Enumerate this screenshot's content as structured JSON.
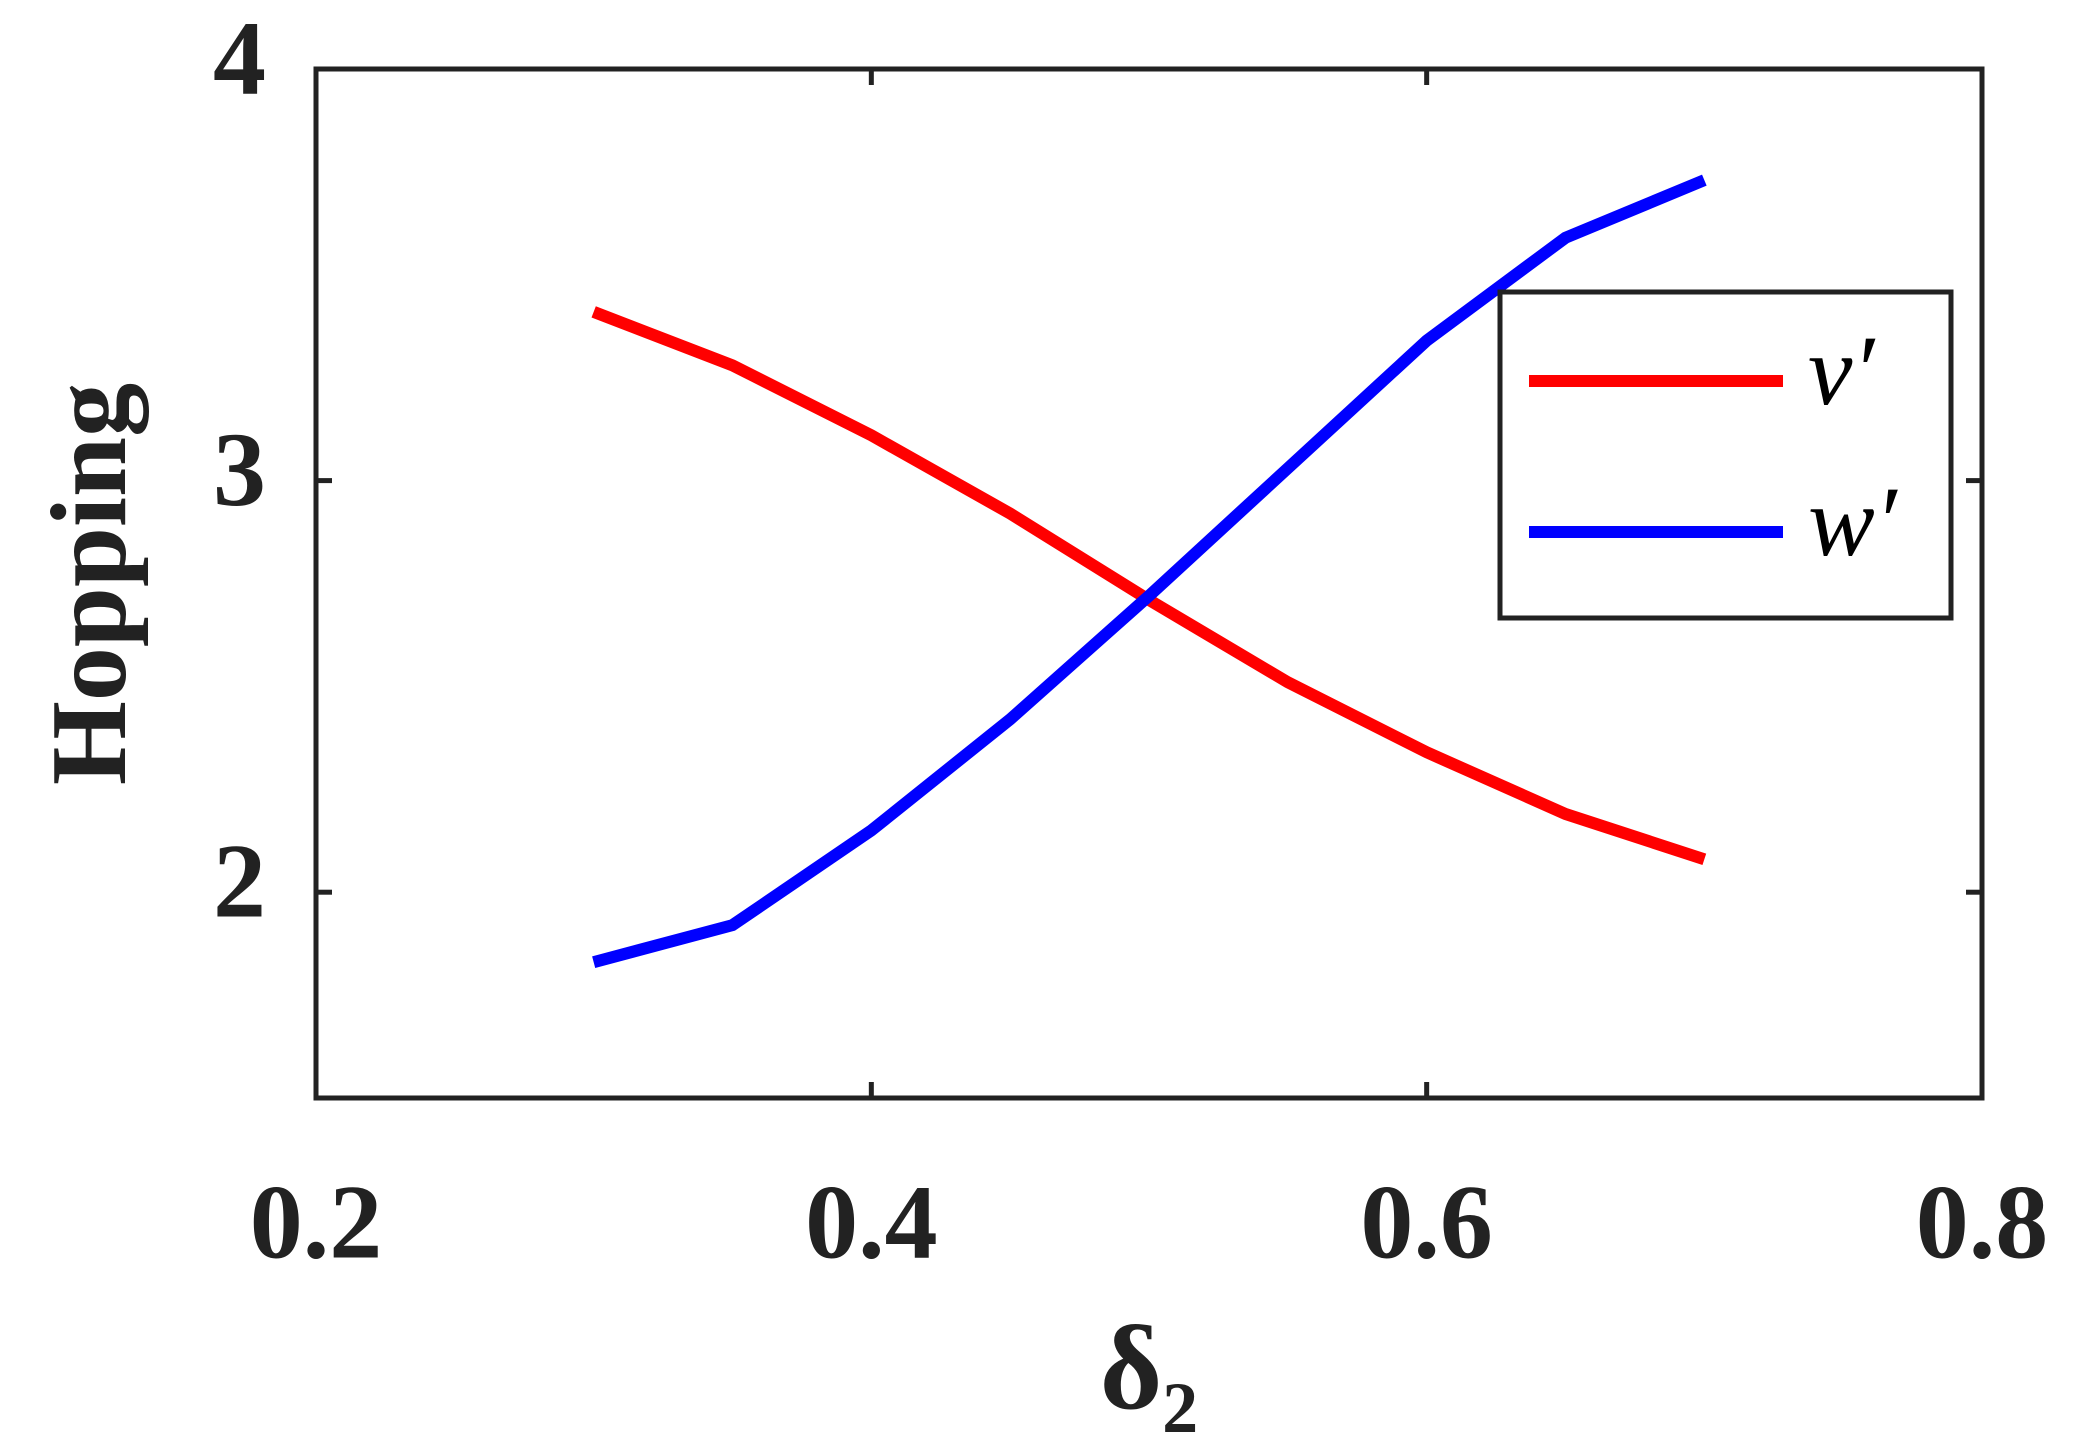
{
  "chart_data": {
    "type": "line",
    "x_label": "δ₂",
    "y_label": "Hopping",
    "x": [
      0.3,
      0.35,
      0.4,
      0.45,
      0.5,
      0.55,
      0.6,
      0.65,
      0.7
    ],
    "series": [
      {
        "name": "v′",
        "color": "#ff0000",
        "values": [
          3.41,
          3.28,
          3.11,
          2.92,
          2.71,
          2.51,
          2.34,
          2.19,
          2.08
        ]
      },
      {
        "name": "w′",
        "color": "#0000ff",
        "values": [
          1.83,
          1.92,
          2.15,
          2.42,
          2.72,
          3.03,
          3.34,
          3.59,
          3.73
        ]
      }
    ],
    "xlim": [
      0.2,
      0.8
    ],
    "xticks": [
      0.2,
      0.4,
      0.6,
      0.8
    ],
    "ylim": [
      1.5,
      4
    ],
    "yticks": [
      2,
      3,
      4
    ],
    "legend": "upper right",
    "grid": false
  }
}
